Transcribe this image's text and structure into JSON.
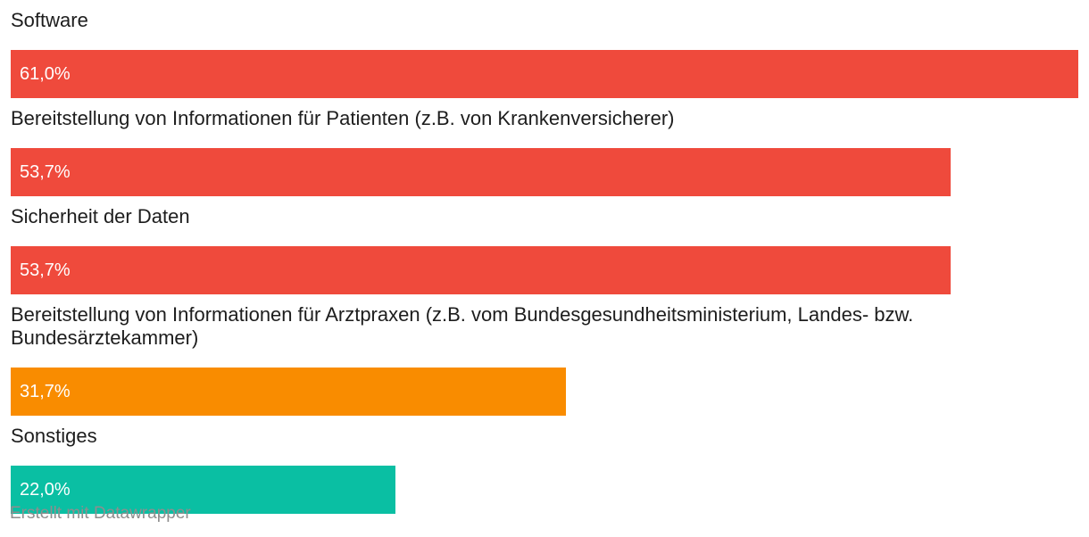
{
  "chart_data": {
    "type": "bar",
    "orientation": "horizontal",
    "categories": [
      "Software",
      "Bereitstellung von Informationen für Patienten (z.B. von Krankenversicherer)",
      "Sicherheit der Daten",
      "Bereitstellung von Informationen für Arztpraxen (z.B. vom Bundesgesundheitsministerium, Landes- bzw. Bundesärztekammer)",
      "Sonstiges"
    ],
    "values": [
      61.0,
      53.7,
      53.7,
      31.7,
      22.0
    ],
    "value_labels": [
      "61,0%",
      "53,7%",
      "53,7%",
      "31,7%",
      "22,0%"
    ],
    "colors": [
      "#ef4a3c",
      "#ef4a3c",
      "#ef4a3c",
      "#f98c00",
      "#0abfa3"
    ],
    "xlim": [
      0,
      61.0
    ],
    "grid": false,
    "legend": "none"
  },
  "footer": {
    "credit": "Erstellt mit Datawrapper"
  }
}
